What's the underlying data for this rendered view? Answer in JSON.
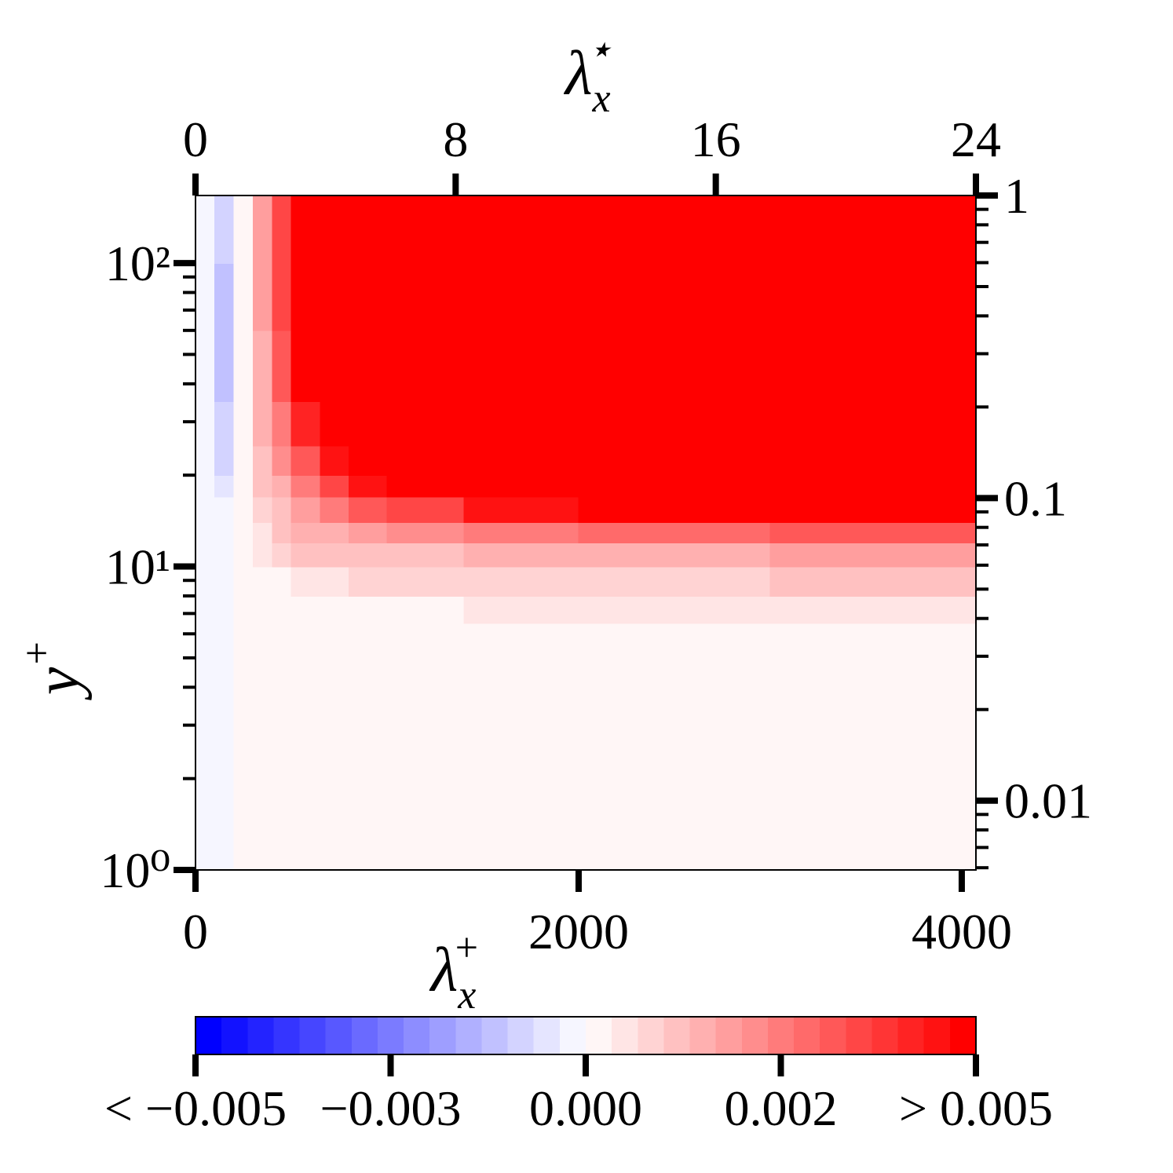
{
  "chart_data": {
    "type": "contour",
    "xlabel": {
      "base": "λ",
      "sub": "x",
      "sup": "+"
    },
    "x2label": {
      "base": "λ",
      "sub": "x",
      "sup": "⋆"
    },
    "ylabel": {
      "base": "y",
      "sup": "+"
    },
    "xlim": [
      0,
      4074
    ],
    "xticks": [
      0,
      2000,
      4000
    ],
    "x2lim": [
      0,
      24
    ],
    "x2ticks": [
      0,
      8,
      16,
      24
    ],
    "ylim": [
      1,
      167
    ],
    "yscale": "log",
    "yticks": [
      {
        "value": 1,
        "label": "10⁰"
      },
      {
        "value": 10,
        "label": "10¹"
      },
      {
        "value": 100,
        "label": "10²"
      }
    ],
    "y_minor_ticks": [
      2,
      3,
      4,
      5,
      6,
      7,
      8,
      9,
      20,
      30,
      40,
      50,
      60,
      70,
      80,
      90
    ],
    "y2lim": [
      0.0059,
      1
    ],
    "y2ticks": [
      0.01,
      0.1,
      1
    ],
    "y2_minor_ticks": [
      0.006,
      0.007,
      0.008,
      0.009,
      0.02,
      0.03,
      0.04,
      0.05,
      0.06,
      0.07,
      0.08,
      0.09,
      0.2,
      0.3,
      0.4,
      0.5,
      0.6,
      0.7,
      0.8,
      0.9
    ],
    "x_edges": [
      0,
      100,
      200,
      300,
      400,
      500,
      650,
      800,
      1000,
      1400,
      2000,
      3000,
      4074
    ],
    "y_edges": [
      1,
      3,
      5,
      6.5,
      8,
      10,
      12,
      14,
      17,
      20,
      25,
      35,
      60,
      100,
      167
    ],
    "z": [
      [
        -0.0001,
        -0.0001,
        0.0001,
        0.0001,
        0.0001,
        0.0001,
        0.0001,
        0.0001,
        0.0001,
        0.0001,
        0.0001,
        0.0001
      ],
      [
        -0.0001,
        -0.0001,
        0.0001,
        0.0001,
        0.0001,
        0.0001,
        0.0001,
        0.0001,
        0.0001,
        0.0001,
        0.0001,
        0.0001
      ],
      [
        -0.0001,
        -0.0001,
        0.0001,
        0.0001,
        0.0001,
        0.0001,
        0.0001,
        0.0001,
        0.0001,
        0.0001,
        0.0002,
        0.0002
      ],
      [
        -0.0001,
        -0.0001,
        0.0001,
        0.0001,
        0.0001,
        0.0001,
        0.0001,
        0.0001,
        0.0002,
        0.0004,
        0.0005,
        0.0005
      ],
      [
        -0.0001,
        -0.0001,
        0.0001,
        0.0002,
        0.0003,
        0.0005,
        0.0006,
        0.0007,
        0.0008,
        0.0008,
        0.0009,
        0.001
      ],
      [
        -0.0001,
        -0.0001,
        0.0002,
        0.0004,
        0.0007,
        0.001,
        0.0011,
        0.0012,
        0.0013,
        0.0014,
        0.0015,
        0.0017
      ],
      [
        -0.0001,
        -0.0002,
        0.0002,
        0.0006,
        0.001,
        0.0014,
        0.0016,
        0.0018,
        0.002,
        0.0024,
        0.0028,
        0.0032
      ],
      [
        -0.0001,
        -0.0003,
        0.0002,
        0.0008,
        0.0013,
        0.0019,
        0.0024,
        0.003,
        0.0036,
        0.0045,
        0.0055,
        0.006
      ],
      [
        -0.0001,
        -0.0005,
        0.0002,
        0.001,
        0.0016,
        0.0025,
        0.0034,
        0.0045,
        0.0055,
        0.007,
        0.008,
        0.008
      ],
      [
        -0.0001,
        -0.0007,
        0.0001,
        0.0012,
        0.002,
        0.003,
        0.0045,
        0.006,
        0.008,
        0.01,
        0.01,
        0.01
      ],
      [
        -0.0002,
        -0.0009,
        0.0001,
        0.0014,
        0.0025,
        0.004,
        0.0065,
        0.009,
        0.01,
        0.01,
        0.01,
        0.01
      ],
      [
        -0.0002,
        -0.0011,
        0,
        0.0016,
        0.003,
        0.0055,
        0.009,
        0.012,
        0.012,
        0.012,
        0.012,
        0.012
      ],
      [
        -0.0002,
        -0.0012,
        0,
        0.0018,
        0.0035,
        0.006,
        0.01,
        0.012,
        0.012,
        0.012,
        0.012,
        0.012
      ],
      [
        -0.0001,
        -0.0008,
        0,
        0.0018,
        0.0035,
        0.006,
        0.01,
        0.012,
        0.012,
        0.012,
        0.012,
        0.012
      ]
    ],
    "colorbar": {
      "lim": [
        -0.005,
        0.005
      ],
      "levels": 30,
      "colors": [
        "#0000ff",
        "#ffffff",
        "#ff0000"
      ],
      "ticks": [
        {
          "value": -0.005,
          "label": "< −0.005"
        },
        {
          "value": -0.0025,
          "label": "−0.003"
        },
        {
          "value": 0,
          "label": "0.000"
        },
        {
          "value": 0.0025,
          "label": "0.002"
        },
        {
          "value": 0.005,
          "label": "> 0.005"
        }
      ]
    }
  }
}
